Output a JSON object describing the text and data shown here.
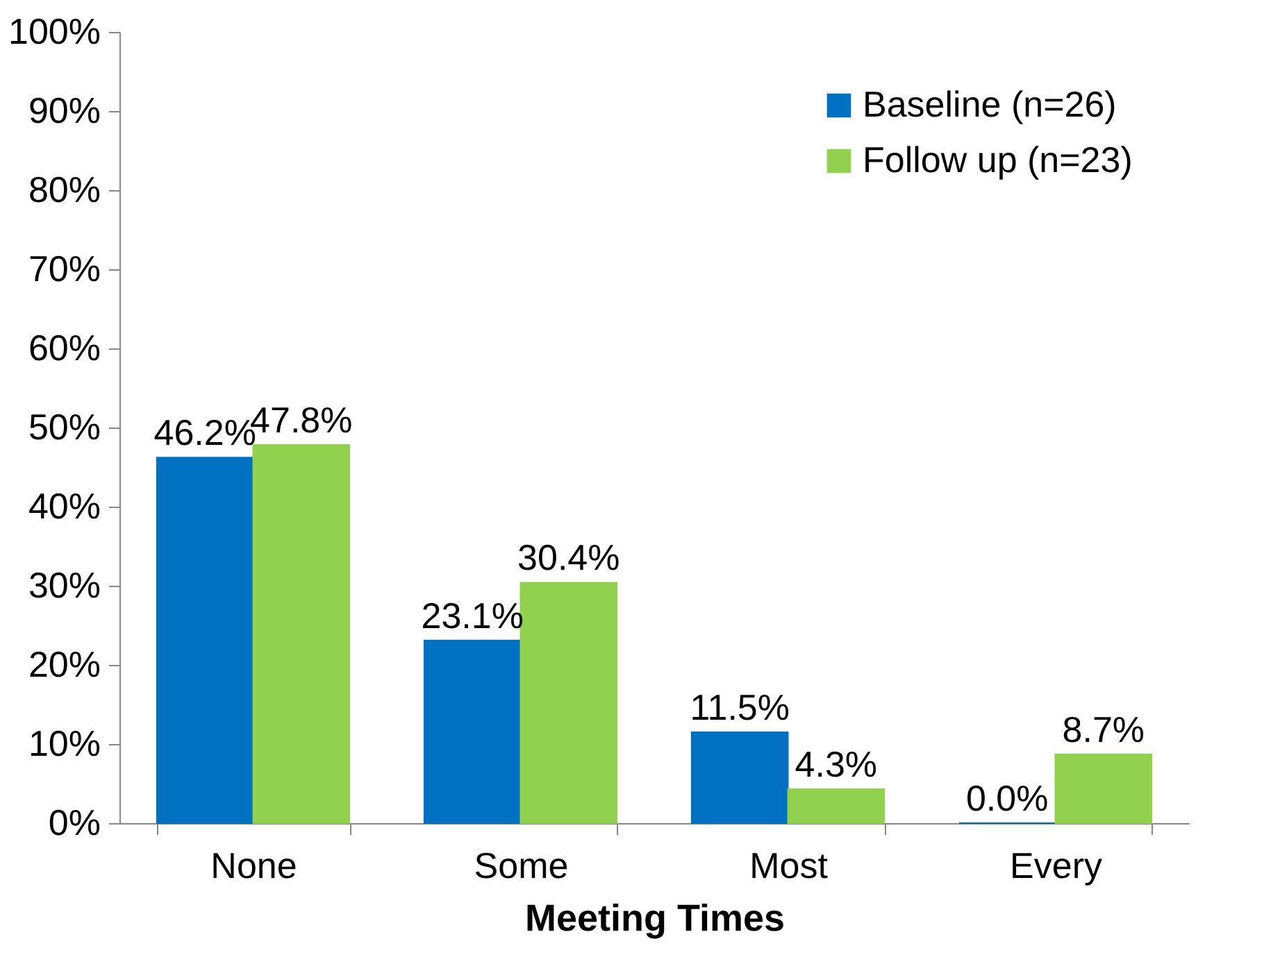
{
  "chart_data": {
    "type": "bar",
    "xlabel": "Meeting Times",
    "categories": [
      "None",
      "Some",
      "Most",
      "Every"
    ],
    "series": [
      {
        "name": "Baseline (n=26)",
        "color": "#0070c0",
        "values": [
          46.2,
          23.1,
          11.5,
          0.0
        ],
        "value_labels": [
          "46.2%",
          "23.1%",
          "11.5%",
          "0.0%"
        ]
      },
      {
        "name": "Follow up (n=23)",
        "color": "#92d050",
        "values": [
          47.8,
          30.4,
          4.3,
          8.7
        ],
        "value_labels": [
          "47.8%",
          "30.4%",
          "4.3%",
          "8.7%"
        ]
      }
    ],
    "ylim": [
      0,
      100
    ],
    "yticks": [
      {
        "value": 0,
        "label": "0%"
      },
      {
        "value": 10,
        "label": "10%"
      },
      {
        "value": 20,
        "label": "20%"
      },
      {
        "value": 30,
        "label": "30%"
      },
      {
        "value": 40,
        "label": "40%"
      },
      {
        "value": 50,
        "label": "50%"
      },
      {
        "value": 60,
        "label": "60%"
      },
      {
        "value": 70,
        "label": "70%"
      },
      {
        "value": 80,
        "label": "80%"
      },
      {
        "value": 90,
        "label": "90%"
      },
      {
        "value": 100,
        "label": "100%"
      }
    ],
    "grid": false,
    "legend": "top right"
  }
}
